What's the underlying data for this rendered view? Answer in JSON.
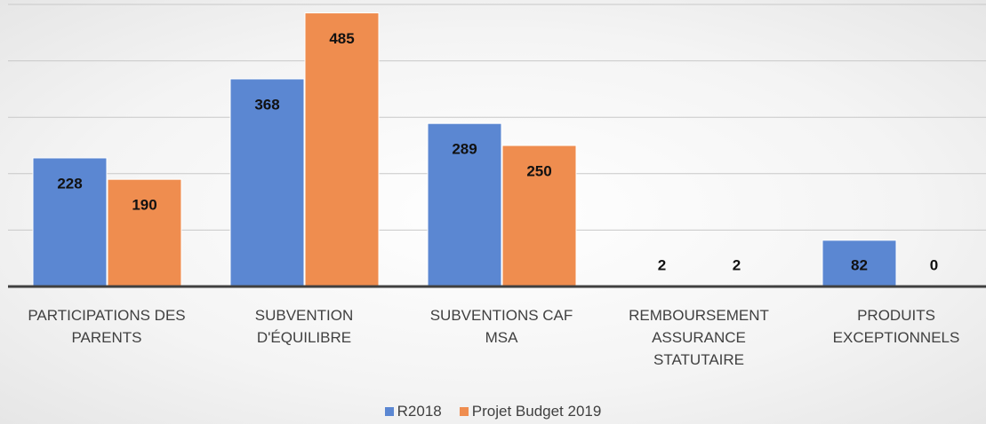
{
  "chart_data": {
    "type": "bar",
    "categories": [
      "PARTICIPATIONS DES PARENTS",
      "SUBVENTION D'ÉQUILIBRE",
      "SUBVENTIONS CAF MSA",
      "REMBOURSEMENT ASSURANCE STATUTAIRE",
      "PRODUITS EXCEPTIONNELS"
    ],
    "series": [
      {
        "name": "R2018",
        "color": "#5b87d2",
        "values": [
          228,
          368,
          289,
          2,
          82
        ]
      },
      {
        "name": "Projet Budget 2019",
        "color": "#ef8d4f",
        "values": [
          190,
          485,
          250,
          2,
          0
        ]
      }
    ],
    "ylim": [
      0,
      500
    ],
    "yticks": [
      100,
      200,
      300,
      400,
      500
    ],
    "grid": true,
    "legend": "bottom"
  }
}
